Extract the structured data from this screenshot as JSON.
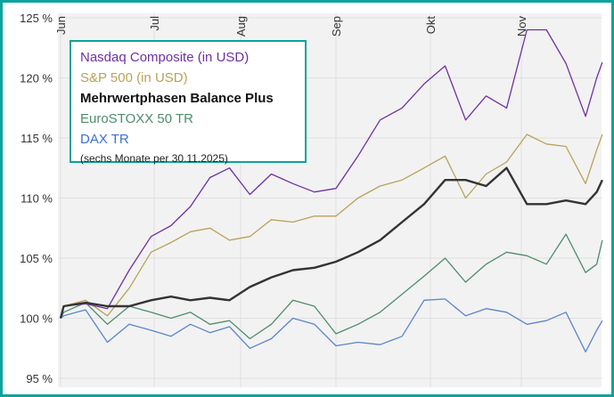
{
  "chart_data": {
    "type": "line",
    "title": "",
    "xlabel": "",
    "ylabel": "",
    "ylim": [
      95,
      125
    ],
    "yticks": [
      "95 %",
      "100 %",
      "105 %",
      "110 %",
      "115 %",
      "120 %",
      "125 %"
    ],
    "ytick_values": [
      95,
      100,
      105,
      110,
      115,
      120,
      125
    ],
    "xticks": [
      {
        "label": "Jun",
        "date": "2025-06-01"
      },
      {
        "label": "Jul",
        "date": "2025-07-01"
      },
      {
        "label": "Aug",
        "date": "2025-08-01"
      },
      {
        "label": "Sep",
        "date": "2025-09-01"
      },
      {
        "label": "Okt",
        "date": "2025-10-01"
      },
      {
        "label": "Nov",
        "date": "2025-11-01"
      }
    ],
    "grid": true,
    "legend_placement": "top-left",
    "note": "(sechs Monate per 30.11.2025)",
    "x": [
      "2025-06-01",
      "2025-06-02",
      "2025-06-09",
      "2025-06-16",
      "2025-06-23",
      "2025-06-30",
      "2025-07-07",
      "2025-07-14",
      "2025-07-21",
      "2025-07-28",
      "2025-08-04",
      "2025-08-11",
      "2025-08-18",
      "2025-08-25",
      "2025-09-01",
      "2025-09-08",
      "2025-09-15",
      "2025-09-22",
      "2025-09-29",
      "2025-10-06",
      "2025-10-13",
      "2025-10-20",
      "2025-10-27",
      "2025-11-03",
      "2025-11-10",
      "2025-11-17",
      "2025-11-24",
      "2025-11-28",
      "2025-11-30"
    ],
    "series": [
      {
        "name": "Nasdaq Composite (in USD)",
        "color": "#7030a0",
        "bold": false,
        "values": [
          100,
          101,
          101.2,
          100.8,
          104,
          106.8,
          107.7,
          109.3,
          111.7,
          112.5,
          110.3,
          112,
          111.2,
          110.5,
          110.8,
          113.5,
          116.5,
          117.5,
          119.5,
          121,
          116.5,
          118.5,
          117.5,
          124,
          124,
          121.2,
          116.8,
          120,
          121.3
        ]
      },
      {
        "name": "S&P 500 (in USD)",
        "color": "#b9a25a",
        "bold": false,
        "values": [
          100,
          101,
          101.5,
          100.2,
          102.5,
          105.5,
          106.3,
          107.2,
          107.5,
          106.5,
          106.8,
          108.2,
          108,
          108.5,
          108.5,
          110,
          111,
          111.5,
          112.5,
          113.5,
          110,
          112,
          113,
          115.3,
          114.5,
          114.3,
          111.2,
          114,
          115.3
        ]
      },
      {
        "name": "Mehrwertphasen Balance Plus",
        "color": "#333333",
        "bold": true,
        "values": [
          100,
          101,
          101.3,
          101,
          101,
          101.5,
          101.8,
          101.5,
          101.7,
          101.5,
          102.6,
          103.4,
          104,
          104.2,
          104.7,
          105.5,
          106.5,
          108,
          109.5,
          111.5,
          111.5,
          111,
          112.5,
          109.5,
          109.5,
          109.8,
          109.5,
          110.5,
          111.5
        ]
      },
      {
        "name": "EuroSTOXX 50 TR",
        "color": "#4e8c6c",
        "bold": false,
        "values": [
          100,
          100.5,
          101.3,
          99.5,
          101,
          100.5,
          100,
          100.5,
          99.5,
          99.8,
          98.3,
          99.5,
          101.5,
          101,
          98.7,
          99.5,
          100.5,
          102,
          103.5,
          105,
          103,
          104.5,
          105.5,
          105.2,
          104.5,
          107,
          103.8,
          104.5,
          106.5
        ]
      },
      {
        "name": "DAX TR",
        "color": "#5b85c9",
        "bold": false,
        "values": [
          100,
          100.2,
          100.7,
          98,
          99.5,
          99,
          98.5,
          99.5,
          98.8,
          99.3,
          97.5,
          98.3,
          100,
          99.5,
          97.7,
          98,
          97.8,
          98.5,
          101.5,
          101.6,
          100.2,
          100.8,
          100.5,
          99.5,
          99.8,
          100.5,
          97.2,
          99,
          99.8
        ]
      }
    ]
  }
}
